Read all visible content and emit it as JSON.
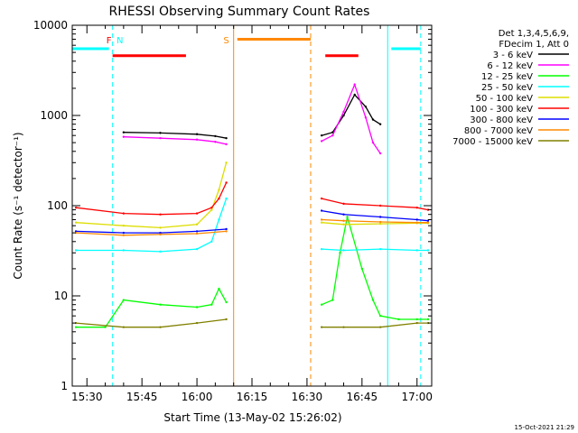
{
  "chart_data": {
    "type": "line",
    "title": "RHESSI Observing Summary Count Rates",
    "xlabel": "Start Time (13-May-02 15:26:02)",
    "ylabel": "Count Rate (s⁻¹ detector⁻¹)",
    "y_scale": "log",
    "ylim": [
      1,
      10000
    ],
    "xlim": [
      "15:26",
      "17:04"
    ],
    "x_ticks": [
      "15:30",
      "15:45",
      "16:00",
      "16:15",
      "16:30",
      "16:45",
      "17:00"
    ],
    "y_ticks": [
      "1",
      "10",
      "100",
      "1000",
      "10000"
    ],
    "grid": false,
    "legend_position": "right",
    "legend_header": [
      "Det 1,3,4,5,6,9,",
      "FDecim 1, Att 0"
    ],
    "timestamp": "15-Oct-2021 21:29",
    "series": [
      {
        "name": "3 - 6 keV",
        "color": "#000000",
        "x": [
          "15:40",
          "15:50",
          "16:00",
          "16:05",
          "16:08",
          "16:34",
          "16:37",
          "16:40",
          "16:43",
          "16:46",
          "16:48",
          "16:50"
        ],
        "y": [
          650,
          640,
          620,
          590,
          560,
          600,
          650,
          1000,
          1700,
          1250,
          900,
          800
        ]
      },
      {
        "name": "6 - 12 keV",
        "color": "#ff00ff",
        "x": [
          "15:40",
          "15:50",
          "16:00",
          "16:05",
          "16:08",
          "16:34",
          "16:37",
          "16:40",
          "16:43",
          "16:46",
          "16:48",
          "16:50"
        ],
        "y": [
          580,
          560,
          540,
          510,
          480,
          520,
          600,
          1100,
          2200,
          950,
          500,
          380
        ]
      },
      {
        "name": "12 - 25 keV",
        "color": "#00ff00",
        "x": [
          "15:27",
          "15:35",
          "15:40",
          "15:50",
          "16:00",
          "16:04",
          "16:06",
          "16:08",
          "16:34",
          "16:37",
          "16:39",
          "16:41",
          "16:45",
          "16:48",
          "16:50",
          "16:55",
          "17:00",
          "17:03"
        ],
        "y": [
          4.5,
          4.5,
          9,
          8,
          7.5,
          8,
          12,
          8.5,
          8,
          9,
          30,
          75,
          20,
          9,
          6,
          5.5,
          5.5,
          5.5
        ]
      },
      {
        "name": "25 - 50 keV",
        "color": "#00ffff",
        "x": [
          "15:27",
          "15:40",
          "15:50",
          "16:00",
          "16:04",
          "16:06",
          "16:08",
          "16:34",
          "16:40",
          "16:50",
          "17:00",
          "17:03"
        ],
        "y": [
          32,
          32,
          31,
          33,
          40,
          70,
          120,
          33,
          32,
          33,
          32,
          32
        ]
      },
      {
        "name": "50 - 100 keV",
        "color": "#dddd00",
        "x": [
          "15:27",
          "15:40",
          "15:50",
          "16:00",
          "16:04",
          "16:06",
          "16:08",
          "16:34",
          "16:40",
          "16:50",
          "17:00",
          "17:03"
        ],
        "y": [
          65,
          60,
          57,
          62,
          90,
          150,
          300,
          65,
          62,
          63,
          64,
          64
        ]
      },
      {
        "name": "100 - 300 keV",
        "color": "#ff0000",
        "x": [
          "15:27",
          "15:40",
          "15:50",
          "16:00",
          "16:04",
          "16:06",
          "16:08",
          "16:34",
          "16:40",
          "16:50",
          "17:00",
          "17:03"
        ],
        "y": [
          95,
          82,
          80,
          82,
          95,
          120,
          180,
          120,
          105,
          100,
          95,
          90
        ]
      },
      {
        "name": "300 - 800 keV",
        "color": "#0000ff",
        "x": [
          "15:27",
          "15:40",
          "15:50",
          "16:00",
          "16:08",
          "16:34",
          "16:40",
          "16:50",
          "17:00",
          "17:03"
        ],
        "y": [
          52,
          50,
          50,
          52,
          55,
          88,
          80,
          75,
          70,
          68
        ]
      },
      {
        "name": "800 - 7000 keV",
        "color": "#ff8800",
        "x": [
          "15:27",
          "15:40",
          "15:50",
          "16:00",
          "16:08",
          "16:34",
          "16:40",
          "16:50",
          "17:00",
          "17:03"
        ],
        "y": [
          50,
          47,
          48,
          49,
          52,
          70,
          68,
          66,
          65,
          65
        ]
      },
      {
        "name": "7000 - 15000 keV",
        "color": "#808000",
        "x": [
          "15:27",
          "15:40",
          "15:50",
          "16:00",
          "16:08",
          "16:34",
          "16:40",
          "16:50",
          "17:00",
          "17:03"
        ],
        "y": [
          5,
          4.5,
          4.5,
          5,
          5.5,
          4.5,
          4.5,
          4.5,
          5,
          5
        ]
      }
    ],
    "annotations": [
      {
        "label": "N",
        "color": "#00ffff",
        "text_x": "15:39"
      },
      {
        "label": "F",
        "color": "#ff0000",
        "text_x": "15:36"
      },
      {
        "label": "S",
        "color": "#ff8800",
        "text_x": "16:08"
      }
    ],
    "segments": [
      {
        "color": "#00ffff",
        "x": [
          "15:26",
          "15:36"
        ],
        "y": 5500,
        "kind": "N"
      },
      {
        "color": "#00ffff",
        "x": [
          "16:53",
          "17:01"
        ],
        "y": 5500,
        "kind": "N"
      },
      {
        "color": "#ff0000",
        "x": [
          "15:37",
          "15:57"
        ],
        "y": 4600,
        "kind": "F"
      },
      {
        "color": "#ff0000",
        "x": [
          "16:35",
          "16:44"
        ],
        "y": 4600,
        "kind": "F"
      },
      {
        "color": "#ff8800",
        "x": [
          "16:11",
          "16:31"
        ],
        "y": 7000,
        "kind": "S"
      }
    ],
    "vertical_markers": [
      {
        "x": "15:37",
        "color": "#00ffff",
        "style": "dashed"
      },
      {
        "x": "16:10",
        "color": "#ff8800",
        "style": "solid"
      },
      {
        "x": "16:31",
        "color": "#ff8800",
        "style": "dashed"
      },
      {
        "x": "16:52",
        "color": "#00ffff",
        "style": "solid"
      },
      {
        "x": "17:01",
        "color": "#00ffff",
        "style": "dashed"
      }
    ]
  }
}
